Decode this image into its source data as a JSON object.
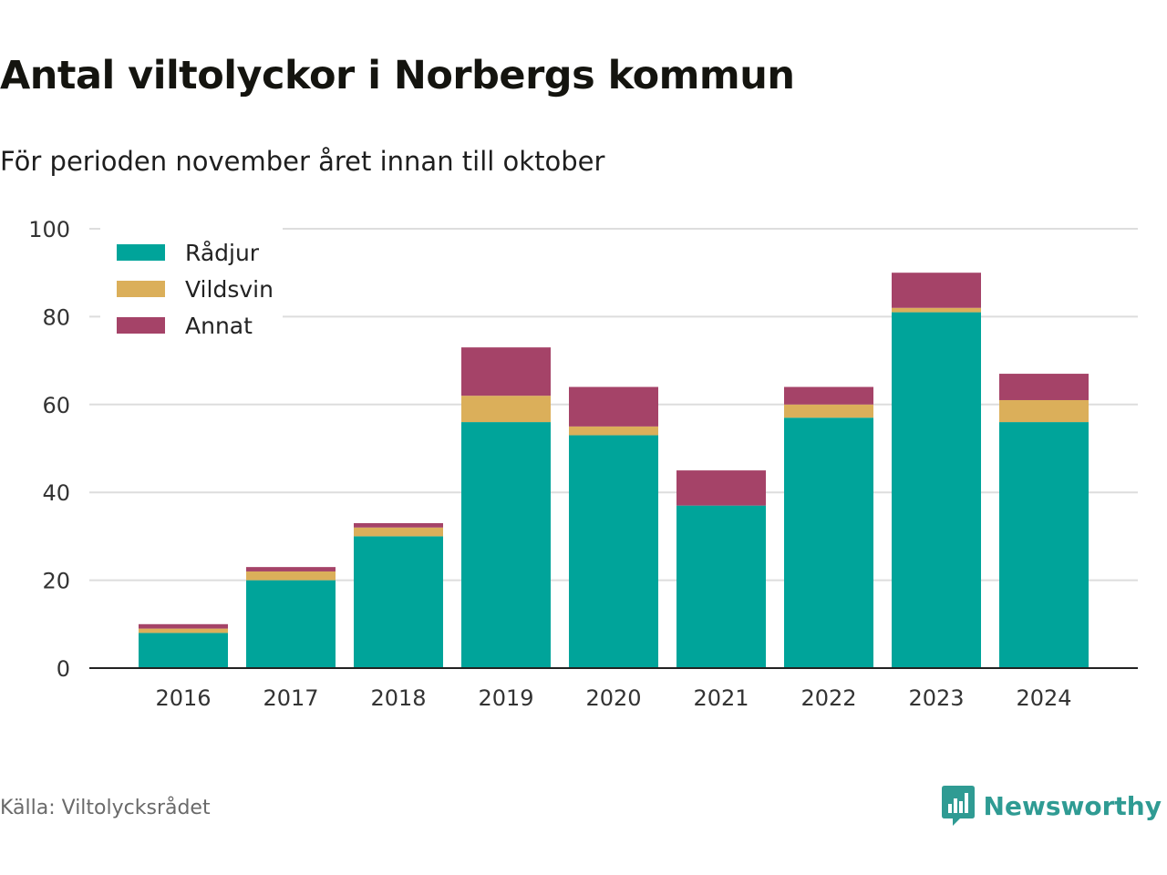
{
  "title": "Antal viltolyckor i Norbergs kommun",
  "subtitle": "För perioden november året innan till oktober",
  "source": "Källa: Viltolycksrådet",
  "brand": {
    "name": "Newsworthy",
    "icon": "bar-chart-speech-bubble-icon",
    "color": "#2f9b93"
  },
  "chart_data": {
    "type": "bar",
    "stacked": true,
    "categories": [
      "2016",
      "2017",
      "2018",
      "2019",
      "2020",
      "2021",
      "2022",
      "2023",
      "2024"
    ],
    "series": [
      {
        "name": "Rådjur",
        "color": "#00a49a",
        "values": [
          8,
          20,
          30,
          56,
          53,
          37,
          57,
          81,
          56
        ]
      },
      {
        "name": "Vildsvin",
        "color": "#dbaf5a",
        "values": [
          1,
          2,
          2,
          6,
          2,
          0,
          3,
          1,
          5
        ]
      },
      {
        "name": "Annat",
        "color": "#a54368",
        "values": [
          1,
          1,
          1,
          11,
          9,
          8,
          4,
          8,
          6
        ]
      }
    ],
    "ylim": [
      0,
      100
    ],
    "yticks": [
      0,
      20,
      40,
      60,
      80,
      100
    ],
    "grid": true,
    "legend_position": "top-left",
    "xlabel": "",
    "ylabel": ""
  }
}
